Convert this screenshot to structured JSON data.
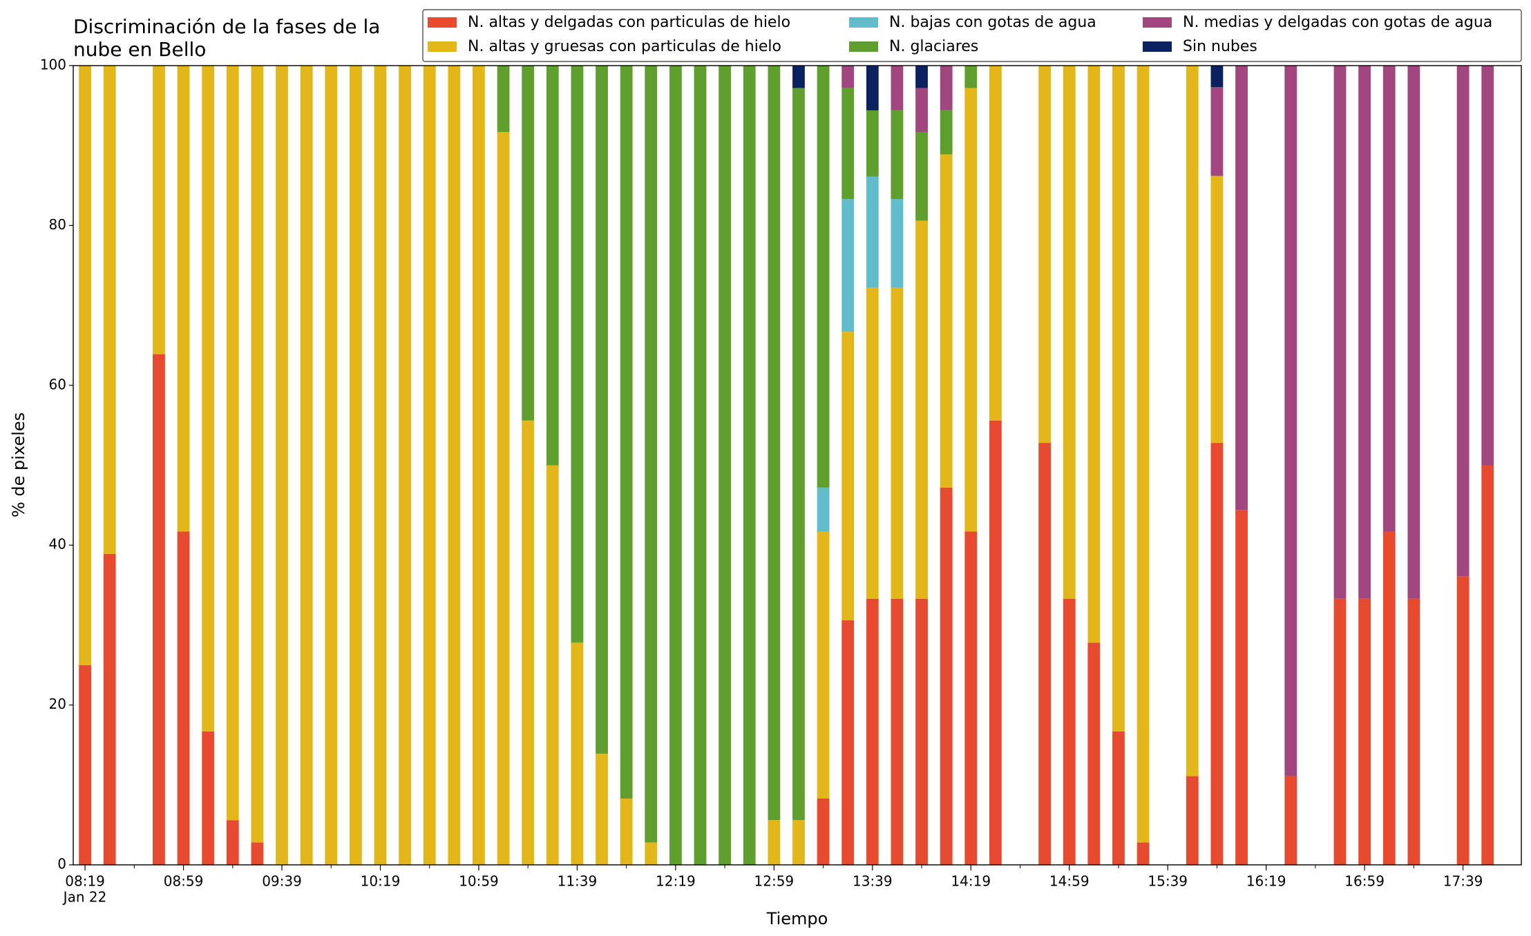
{
  "chart_data": {
    "type": "stacked_bar",
    "title_lines": [
      "Discriminación de la fases de la",
      "nube en Bello"
    ],
    "x_label": "Tiempo",
    "y_label": "% de pixeles",
    "x_date_label": "Jan 22",
    "categories": [
      "08:19",
      null,
      null,
      null,
      "08:59",
      null,
      null,
      null,
      "09:39",
      null,
      null,
      null,
      "10:19",
      null,
      null,
      null,
      "10:59",
      null,
      null,
      null,
      "11:39",
      null,
      null,
      null,
      "12:19",
      null,
      null,
      null,
      "12:59",
      null,
      null,
      null,
      "13:39",
      null,
      null,
      null,
      "14:19",
      null,
      null,
      null,
      "14:59",
      null,
      null,
      null,
      "15:39",
      null,
      null,
      null,
      "16:19",
      null,
      null,
      null,
      "16:59",
      null,
      null,
      null,
      "17:39",
      null
    ],
    "ylim": [
      0,
      100
    ],
    "yticks": [
      0,
      20,
      40,
      60,
      80,
      100
    ],
    "grid": false,
    "legend": "top",
    "series": [
      {
        "name": "N. altas y delgadas con particulas de hielo",
        "color": "#e84a2f",
        "values": [
          25,
          38.9,
          null,
          63.9,
          41.7,
          16.7,
          5.6,
          2.8,
          0,
          0,
          0,
          0,
          0,
          0,
          0,
          0,
          0,
          0,
          0,
          0,
          0,
          0,
          0,
          0,
          0,
          0,
          0,
          0,
          0,
          0,
          8.3,
          30.6,
          33.3,
          33.3,
          33.3,
          47.2,
          41.7,
          55.6,
          null,
          52.8,
          33.3,
          27.8,
          16.7,
          2.8,
          null,
          11.1,
          52.8,
          44.4,
          null,
          11.1,
          null,
          33.3,
          33.3,
          41.7,
          33.3,
          null,
          36.1,
          50
        ]
      },
      {
        "name": "N. altas y gruesas con particulas de hielo",
        "color": "#e3b71a",
        "values": [
          75,
          61.1,
          null,
          36.1,
          58.3,
          83.3,
          94.4,
          97.2,
          100,
          100,
          100,
          100,
          100,
          100,
          100,
          100,
          100,
          91.7,
          55.6,
          50,
          27.8,
          13.9,
          8.3,
          2.8,
          0,
          0,
          0,
          0,
          5.6,
          5.6,
          33.4,
          36.1,
          38.9,
          38.9,
          47.3,
          41.7,
          55.5,
          44.4,
          null,
          47.2,
          66.7,
          72.2,
          83.3,
          97.2,
          null,
          88.9,
          33.4,
          0,
          null,
          0,
          null,
          0,
          0,
          0,
          0,
          null,
          0,
          0
        ]
      },
      {
        "name": "N. bajas con gotas de agua",
        "color": "#61bccc",
        "values": [
          0,
          0,
          null,
          0,
          0,
          0,
          0,
          0,
          0,
          0,
          0,
          0,
          0,
          0,
          0,
          0,
          0,
          0,
          0,
          0,
          0,
          0,
          0,
          0,
          0,
          0,
          0,
          0,
          0,
          0,
          5.5,
          16.6,
          13.9,
          11.1,
          0,
          0,
          0,
          0,
          null,
          0,
          0,
          0,
          0,
          0,
          null,
          0,
          0,
          0,
          null,
          0,
          null,
          0,
          0,
          0,
          0,
          null,
          0,
          0
        ]
      },
      {
        "name": "N. glaciares",
        "color": "#5e9f2e",
        "values": [
          0,
          0,
          null,
          0,
          0,
          0,
          0,
          0,
          0,
          0,
          0,
          0,
          0,
          0,
          0,
          0,
          0,
          8.3,
          44.4,
          50,
          72.2,
          86.1,
          91.7,
          97.2,
          100,
          100,
          100,
          100,
          94.4,
          91.6,
          52.8,
          13.9,
          8.3,
          11.1,
          11.1,
          5.5,
          2.8,
          0,
          null,
          0,
          0,
          0,
          0,
          0,
          null,
          0,
          0,
          0,
          null,
          0,
          null,
          0,
          0,
          0,
          0,
          null,
          0,
          0
        ]
      },
      {
        "name": "N. medias y delgadas con gotas de agua",
        "color": "#a1467e",
        "values": [
          0,
          0,
          null,
          0,
          0,
          0,
          0,
          0,
          0,
          0,
          0,
          0,
          0,
          0,
          0,
          0,
          0,
          0,
          0,
          0,
          0,
          0,
          0,
          0,
          0,
          0,
          0,
          0,
          0,
          0,
          0,
          2.8,
          0,
          5.6,
          5.5,
          5.6,
          0,
          0,
          null,
          0,
          0,
          0,
          0,
          0,
          null,
          0,
          11.1,
          55.6,
          null,
          88.9,
          null,
          66.7,
          66.7,
          58.3,
          66.7,
          null,
          63.9,
          50
        ]
      },
      {
        "name": "Sin nubes",
        "color": "#0b2160",
        "values": [
          0,
          0,
          null,
          0,
          0,
          0,
          0,
          0,
          0,
          0,
          0,
          0,
          0,
          0,
          0,
          0,
          0,
          0,
          0,
          0,
          0,
          0,
          0,
          0,
          0,
          0,
          0,
          0,
          0,
          2.8,
          0,
          0,
          5.6,
          0,
          2.8,
          0,
          0,
          0,
          null,
          0,
          0,
          0,
          0,
          0,
          null,
          0,
          2.7,
          0,
          null,
          0,
          null,
          0,
          0,
          0,
          0,
          null,
          0,
          0
        ]
      }
    ]
  }
}
